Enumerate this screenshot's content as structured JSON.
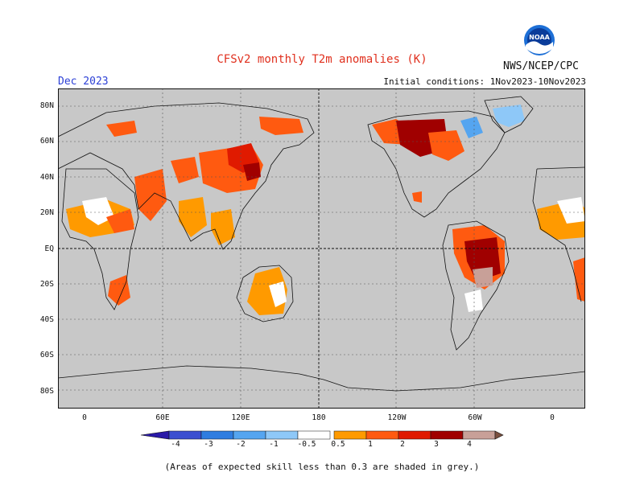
{
  "title": "CFSv2 monthly T2m anomalies (K)",
  "month": "Dec 2023",
  "organization": "NWS/NCEP/CPC",
  "logo_text": "NOAA",
  "initial_conditions": "Initial conditions: 1Nov2023-10Nov2023",
  "footnote": "(Areas of expected skill less than 0.3 are shaded in grey.)",
  "map": {
    "projection": "cylindrical-equidistant",
    "center_longitude": 180,
    "background_color": "#c8c8c8",
    "lat_labels": [
      "80N",
      "60N",
      "40N",
      "20N",
      "EQ",
      "20S",
      "40S",
      "60S",
      "80S"
    ],
    "lon_labels": [
      "0",
      "60E",
      "120E",
      "180",
      "120W",
      "60W",
      "0"
    ]
  },
  "colorbar": {
    "tick_labels": [
      "-4",
      "-3",
      "-2",
      "-1",
      "-0.5",
      "0.5",
      "1",
      "2",
      "3",
      "4"
    ],
    "colors": [
      "#2a1aa8",
      "#3b4fd0",
      "#2f7de0",
      "#55a5f0",
      "#8ec8f8",
      "#ffffff",
      "#ff9a00",
      "#ff5a10",
      "#e01a00",
      "#a00000",
      "#c8a098",
      "#7a5040"
    ]
  },
  "anomaly_regions": [
    {
      "name": "Western Canada / Hudson Bay",
      "level": "3"
    },
    {
      "name": "Central Brazil",
      "level": "3"
    },
    {
      "name": "East Asia / Mongolia",
      "level": "2"
    },
    {
      "name": "Sahel / North Africa",
      "level": "0.5"
    },
    {
      "name": "Greenland",
      "level": "-1"
    }
  ]
}
